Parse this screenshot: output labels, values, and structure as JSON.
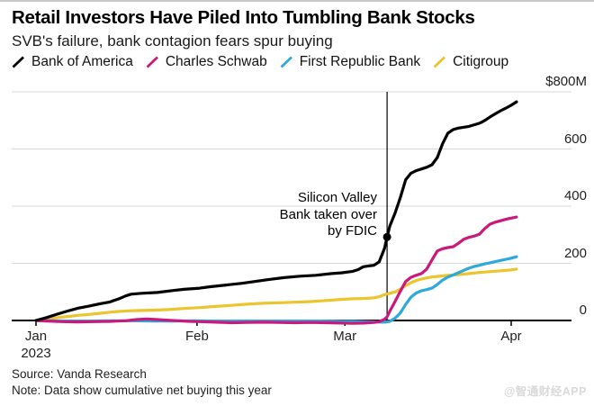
{
  "header": {
    "title": "Retail Investors Have Piled Into Tumbling Bank Stocks",
    "subtitle": "SVB's failure, bank contagion fears spur buying"
  },
  "legend": {
    "items": [
      {
        "label": "Bank of America"
      },
      {
        "label": "Charles Schwab"
      },
      {
        "label": "First Republic Bank"
      },
      {
        "label": "Citigroup"
      }
    ]
  },
  "footer": {
    "source": "Source: Vanda Research",
    "note": "Note: Data show cumulative net buying this year",
    "watermark": "@智通财经APP"
  },
  "chart_data": {
    "type": "line",
    "title": "Retail Investors Have Piled Into Tumbling Bank Stocks",
    "subtitle": "SVB's failure, bank contagion fears spur buying",
    "unit_note": "cumulative net buying, millions of US dollars",
    "grid": "horizontal-only",
    "legend_position": "top",
    "colors": {
      "grid": "#d9d9d9",
      "axis": "#000000",
      "annotation": "#000000"
    },
    "y_axis": {
      "range": [
        0,
        800
      ],
      "ticks": [
        {
          "value": 800,
          "label": "$800M"
        },
        {
          "value": 600,
          "label": "600"
        },
        {
          "value": 400,
          "label": "400"
        },
        {
          "value": 200,
          "label": "200"
        },
        {
          "value": 0,
          "label": "0"
        }
      ]
    },
    "x_axis": {
      "unit": "days since Jan 1 2023",
      "domain_days": [
        0,
        101
      ],
      "ticks": [
        {
          "day": 0,
          "label": "Jan",
          "sublabel": "2023"
        },
        {
          "day": 30.5,
          "label": "Feb"
        },
        {
          "day": 58.5,
          "label": "Mar"
        },
        {
          "day": 90,
          "label": "Apr"
        }
      ]
    },
    "event": {
      "label_lines": [
        "Silicon Valley",
        "Bank taken over",
        "by FDIC"
      ],
      "day": 66.5,
      "marker": {
        "series": "Bank of America",
        "value": 292
      }
    },
    "series": [
      {
        "name": "Bank of America",
        "color": "#000000",
        "points": [
          [
            0,
            0
          ],
          [
            2,
            10
          ],
          [
            4,
            22
          ],
          [
            6,
            33
          ],
          [
            8,
            43
          ],
          [
            10,
            50
          ],
          [
            12,
            58
          ],
          [
            14,
            65
          ],
          [
            16,
            78
          ],
          [
            17,
            86
          ],
          [
            18,
            92
          ],
          [
            20,
            95
          ],
          [
            23,
            98
          ],
          [
            26,
            105
          ],
          [
            28,
            109
          ],
          [
            31,
            113
          ],
          [
            33,
            118
          ],
          [
            36,
            124
          ],
          [
            39,
            130
          ],
          [
            41,
            135
          ],
          [
            44,
            143
          ],
          [
            47,
            150
          ],
          [
            50,
            155
          ],
          [
            53,
            158
          ],
          [
            56,
            164
          ],
          [
            58,
            167
          ],
          [
            60,
            172
          ],
          [
            61,
            178
          ],
          [
            62,
            188
          ],
          [
            63,
            191
          ],
          [
            64,
            193
          ],
          [
            65,
            205
          ],
          [
            66,
            252
          ],
          [
            66.5,
            292
          ],
          [
            67,
            330
          ],
          [
            68,
            375
          ],
          [
            69,
            430
          ],
          [
            70,
            492
          ],
          [
            71,
            515
          ],
          [
            72,
            524
          ],
          [
            73,
            530
          ],
          [
            74,
            536
          ],
          [
            75,
            545
          ],
          [
            76,
            570
          ],
          [
            77,
            618
          ],
          [
            78,
            655
          ],
          [
            79,
            668
          ],
          [
            80,
            673
          ],
          [
            82,
            679
          ],
          [
            84,
            690
          ],
          [
            85,
            700
          ],
          [
            86,
            712
          ],
          [
            87,
            723
          ],
          [
            88,
            734
          ],
          [
            89,
            743
          ],
          [
            90,
            753
          ],
          [
            91,
            765
          ]
        ]
      },
      {
        "name": "Charles Schwab",
        "color": "#c9197d",
        "points": [
          [
            0,
            0
          ],
          [
            2,
            -2
          ],
          [
            5,
            -4
          ],
          [
            8,
            -5
          ],
          [
            11,
            -4
          ],
          [
            14,
            -3
          ],
          [
            17,
            -1
          ],
          [
            19,
            3
          ],
          [
            21,
            5
          ],
          [
            23,
            3
          ],
          [
            25,
            1
          ],
          [
            27,
            -1
          ],
          [
            29,
            -3
          ],
          [
            31,
            -4
          ],
          [
            34,
            -6
          ],
          [
            37,
            -8
          ],
          [
            40,
            -7
          ],
          [
            43,
            -6
          ],
          [
            46,
            -7
          ],
          [
            49,
            -8
          ],
          [
            52,
            -7
          ],
          [
            55,
            -8
          ],
          [
            58,
            -9
          ],
          [
            60,
            -10
          ],
          [
            62,
            -9
          ],
          [
            64,
            -7
          ],
          [
            65,
            -4
          ],
          [
            66,
            4
          ],
          [
            66.5,
            13
          ],
          [
            67,
            32
          ],
          [
            68,
            66
          ],
          [
            69,
            102
          ],
          [
            70,
            136
          ],
          [
            71,
            151
          ],
          [
            72,
            158
          ],
          [
            73,
            164
          ],
          [
            74,
            180
          ],
          [
            75,
            212
          ],
          [
            76,
            243
          ],
          [
            77,
            251
          ],
          [
            78,
            255
          ],
          [
            79,
            258
          ],
          [
            80,
            270
          ],
          [
            81,
            284
          ],
          [
            82,
            291
          ],
          [
            83,
            295
          ],
          [
            84,
            302
          ],
          [
            85,
            322
          ],
          [
            86,
            337
          ],
          [
            87,
            344
          ],
          [
            88,
            349
          ],
          [
            89,
            354
          ],
          [
            90,
            358
          ],
          [
            91,
            362
          ]
        ]
      },
      {
        "name": "First Republic Bank",
        "color": "#2fa8dc",
        "points": [
          [
            0,
            0
          ],
          [
            3,
            -1
          ],
          [
            6,
            -2
          ],
          [
            10,
            -2
          ],
          [
            14,
            -1
          ],
          [
            18,
            -1
          ],
          [
            22,
            -2
          ],
          [
            26,
            -2
          ],
          [
            30,
            -1
          ],
          [
            34,
            -2
          ],
          [
            38,
            -2
          ],
          [
            42,
            -2
          ],
          [
            46,
            -2
          ],
          [
            50,
            -2
          ],
          [
            54,
            -2
          ],
          [
            58,
            -3
          ],
          [
            60,
            -3
          ],
          [
            62,
            -4
          ],
          [
            64,
            -5
          ],
          [
            66,
            -6
          ],
          [
            67,
            -3
          ],
          [
            68,
            8
          ],
          [
            69,
            26
          ],
          [
            70,
            56
          ],
          [
            71,
            81
          ],
          [
            72,
            96
          ],
          [
            73,
            104
          ],
          [
            74,
            108
          ],
          [
            75,
            113
          ],
          [
            76,
            126
          ],
          [
            77,
            141
          ],
          [
            78,
            152
          ],
          [
            79,
            159
          ],
          [
            80,
            167
          ],
          [
            81,
            175
          ],
          [
            82,
            183
          ],
          [
            83,
            189
          ],
          [
            84,
            193
          ],
          [
            85,
            198
          ],
          [
            86,
            202
          ],
          [
            87,
            206
          ],
          [
            88,
            210
          ],
          [
            89,
            214
          ],
          [
            90,
            218
          ],
          [
            91,
            223
          ]
        ]
      },
      {
        "name": "Citigroup",
        "color": "#ecc42d",
        "points": [
          [
            0,
            0
          ],
          [
            2,
            5
          ],
          [
            4,
            10
          ],
          [
            6,
            14
          ],
          [
            8,
            18
          ],
          [
            10,
            21
          ],
          [
            12,
            25
          ],
          [
            14,
            29
          ],
          [
            16,
            32
          ],
          [
            18,
            34
          ],
          [
            20,
            35
          ],
          [
            22,
            36
          ],
          [
            25,
            38
          ],
          [
            28,
            42
          ],
          [
            31,
            45
          ],
          [
            34,
            49
          ],
          [
            37,
            53
          ],
          [
            40,
            57
          ],
          [
            43,
            60
          ],
          [
            46,
            62
          ],
          [
            49,
            64
          ],
          [
            52,
            66
          ],
          [
            55,
            70
          ],
          [
            58,
            74
          ],
          [
            60,
            76
          ],
          [
            62,
            77
          ],
          [
            64,
            79
          ],
          [
            65,
            83
          ],
          [
            66,
            90
          ],
          [
            67,
            95
          ],
          [
            68,
            100
          ],
          [
            69,
            110
          ],
          [
            70,
            122
          ],
          [
            71,
            132
          ],
          [
            72,
            140
          ],
          [
            73,
            145
          ],
          [
            74,
            149
          ],
          [
            75,
            152
          ],
          [
            76,
            154
          ],
          [
            77,
            156
          ],
          [
            78,
            158
          ],
          [
            80,
            160
          ],
          [
            82,
            164
          ],
          [
            84,
            168
          ],
          [
            86,
            171
          ],
          [
            88,
            174
          ],
          [
            90,
            177
          ],
          [
            91,
            180
          ]
        ]
      }
    ]
  }
}
